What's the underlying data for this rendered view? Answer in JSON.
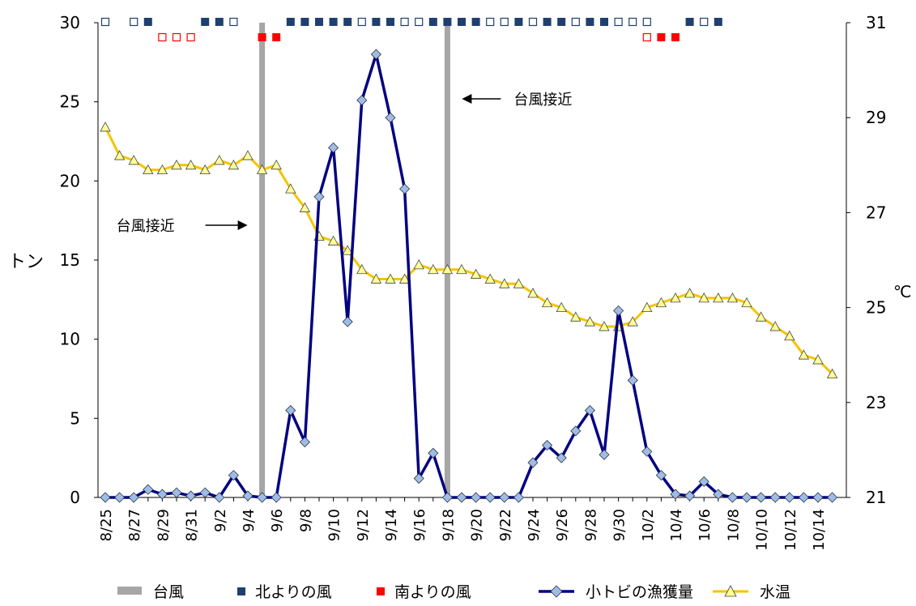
{
  "chart_data": {
    "type": "line",
    "x": [
      "8/25",
      "8/26",
      "8/27",
      "8/28",
      "8/29",
      "8/30",
      "8/31",
      "9/1",
      "9/2",
      "9/3",
      "9/4",
      "9/5",
      "9/6",
      "9/7",
      "9/8",
      "9/9",
      "9/10",
      "9/11",
      "9/12",
      "9/13",
      "9/14",
      "9/15",
      "9/16",
      "9/17",
      "9/18",
      "9/19",
      "9/20",
      "9/21",
      "9/22",
      "9/23",
      "9/24",
      "9/25",
      "9/26",
      "9/27",
      "9/28",
      "9/29",
      "9/30",
      "10/1",
      "10/2",
      "10/3",
      "10/4",
      "10/5",
      "10/6",
      "10/7",
      "10/8",
      "10/9",
      "10/10",
      "10/11",
      "10/12",
      "10/13",
      "10/14",
      "10/15"
    ],
    "xticks": [
      "8/25",
      "8/27",
      "8/29",
      "8/31",
      "9/2",
      "9/4",
      "9/6",
      "9/8",
      "9/10",
      "9/12",
      "9/14",
      "9/16",
      "9/18",
      "9/20",
      "9/22",
      "9/24",
      "9/26",
      "9/28",
      "9/30",
      "10/2",
      "10/4",
      "10/6",
      "10/8",
      "10/10",
      "10/12",
      "10/14"
    ],
    "ylabel": "トン",
    "y2label": "℃",
    "ylim": [
      0,
      30
    ],
    "y2lim": [
      21,
      31
    ],
    "yticks": [
      0,
      5,
      10,
      15,
      20,
      25,
      30
    ],
    "y2ticks": [
      21,
      23,
      25,
      27,
      29,
      31
    ],
    "series": [
      {
        "name": "小トビの漁獲量",
        "axis": "left",
        "color": "#000080",
        "marker_color": "#9dbde6",
        "values": [
          0,
          0,
          0,
          0.5,
          0.2,
          0.3,
          0.1,
          0.3,
          0,
          1.4,
          0.1,
          0,
          0,
          5.5,
          3.5,
          19,
          22.1,
          11.1,
          25.1,
          28,
          24,
          19.5,
          1.2,
          2.8,
          0,
          0,
          0,
          0,
          0,
          0,
          2.2,
          3.3,
          2.5,
          4.2,
          5.5,
          2.7,
          11.8,
          7.4,
          2.9,
          1.4,
          0.2,
          0.1,
          1,
          0.2,
          0,
          0,
          0,
          0,
          0,
          0,
          0,
          0
        ]
      },
      {
        "name": "水温",
        "axis": "right",
        "color": "#f5c400",
        "marker_color": "#ffff99",
        "values": [
          28.8,
          28.2,
          28.1,
          27.9,
          27.9,
          28,
          28,
          27.9,
          28.1,
          28,
          28.2,
          27.9,
          28,
          27.5,
          27.1,
          26.5,
          26.4,
          26.2,
          25.8,
          25.6,
          25.6,
          25.6,
          25.9,
          25.8,
          25.8,
          25.8,
          25.7,
          25.6,
          25.5,
          25.5,
          25.3,
          25.1,
          25,
          24.8,
          24.7,
          24.6,
          24.6,
          24.7,
          25,
          25.1,
          25.2,
          25.3,
          25.2,
          25.2,
          25.2,
          25.1,
          24.8,
          24.6,
          24.4,
          24,
          23.9,
          23.6
        ]
      }
    ],
    "typhoons": [
      "9/5",
      "9/18"
    ],
    "typhoon_color": "#a6a6a6",
    "annotations": [
      {
        "text": "台風接近",
        "arrow": "right",
        "date": "9/5"
      },
      {
        "text": "台風接近",
        "arrow": "left",
        "date": "9/18"
      }
    ],
    "wind_north": [
      "8/25:o",
      "8/27:o",
      "8/28:f",
      "9/1:f",
      "9/2:f",
      "9/3:o",
      "9/7:f",
      "9/8:f",
      "9/9:f",
      "9/10:f",
      "9/11:f",
      "9/12:o",
      "9/13:f",
      "9/14:f",
      "9/15:o",
      "9/16:o",
      "9/17:f",
      "9/18:f",
      "9/19:f",
      "9/20:f",
      "9/21:o",
      "9/22:o",
      "9/23:f",
      "9/24:o",
      "9/25:f",
      "9/26:f",
      "9/27:o",
      "9/28:f",
      "9/29:f",
      "9/30:o",
      "10/1:o",
      "10/2:o",
      "10/5:f",
      "10/6:o",
      "10/7:f"
    ],
    "wind_south": [
      "8/29:o",
      "8/30:o",
      "8/31:o",
      "9/5:f",
      "9/6:f",
      "10/2:o",
      "10/3:f",
      "10/4:f"
    ],
    "north_color": "#1f3f6e",
    "south_color": "#ff0000",
    "legend": [
      {
        "label": "台風",
        "kind": "bar"
      },
      {
        "label": "北よりの風",
        "kind": "north"
      },
      {
        "label": "南よりの風",
        "kind": "south"
      },
      {
        "label": "小トビの漁獲量",
        "kind": "catch"
      },
      {
        "label": "水温",
        "kind": "temp"
      }
    ],
    "legend_position": "bottom",
    "grid": false
  }
}
